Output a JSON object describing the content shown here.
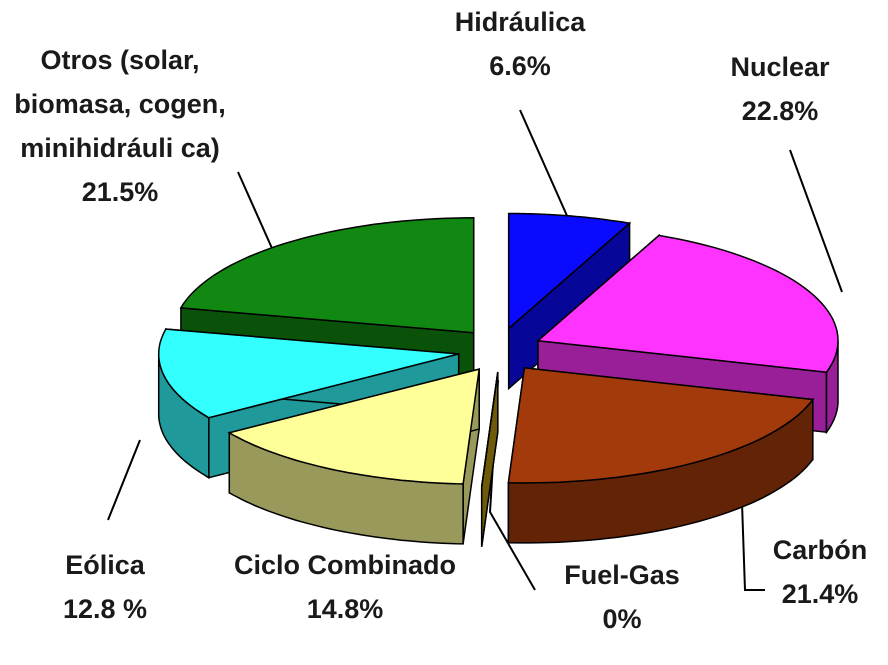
{
  "chart_data": {
    "type": "pie3d",
    "categories": [
      "Hidráulica",
      "Nuclear",
      "Carbón",
      "Fuel-Gas",
      "Ciclo Combinado",
      "Eólica",
      "Otros (solar, biomasa, cogen, minihidráuli ca)"
    ],
    "values": [
      6.6,
      22.8,
      21.4,
      0,
      14.8,
      12.8,
      21.5
    ],
    "value_labels": [
      "6.6%",
      "22.8%",
      "21.4%",
      "0%",
      "14.8%",
      "12.8 %",
      "21.5%"
    ],
    "colors": [
      "#0a0aff",
      "#ff33ff",
      "#a33a0c",
      "#b8960f",
      "#ffff99",
      "#33ffff",
      "#118811"
    ]
  }
}
